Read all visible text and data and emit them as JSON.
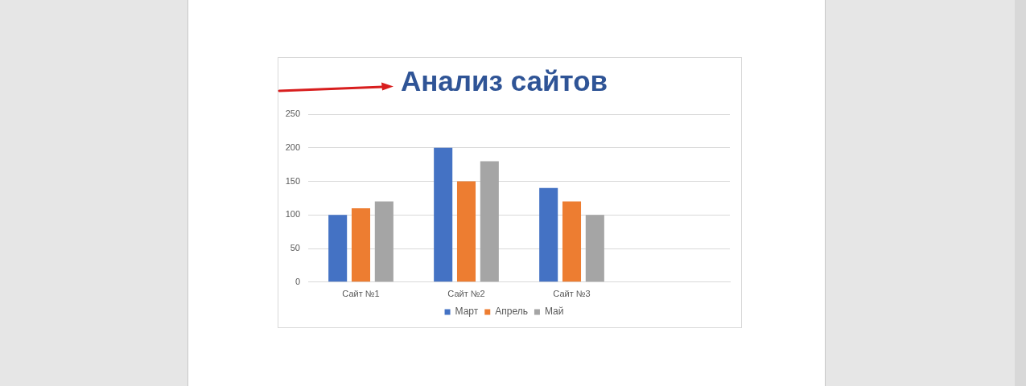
{
  "chart_data": {
    "type": "bar",
    "title": "Анализ сайтов",
    "categories": [
      "Сайт №1",
      "Сайт №2",
      "Сайт №3",
      null
    ],
    "series": [
      {
        "name": "Март",
        "color": "#4472c4",
        "values": [
          100,
          200,
          140,
          null
        ]
      },
      {
        "name": "Апрель",
        "color": "#ed7d31",
        "values": [
          110,
          150,
          120,
          null
        ]
      },
      {
        "name": "Май",
        "color": "#a5a5a5",
        "values": [
          120,
          180,
          100,
          null
        ]
      }
    ],
    "ylim": [
      0,
      250
    ],
    "yticks": [
      0,
      50,
      100,
      150,
      200,
      250
    ],
    "grid": "y",
    "legend": "bottom"
  }
}
